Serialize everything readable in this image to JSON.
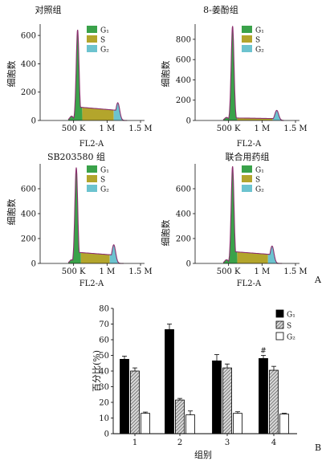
{
  "panel_label_a": "A",
  "panel_label_b": "B",
  "chart_data": [
    {
      "type": "area",
      "title": "对照组",
      "xlabel": "FL2-A",
      "ylabel": "细胞数",
      "xtick_labels": [
        "500 K",
        "1 M",
        "1.5 M"
      ],
      "xticks": [
        500,
        1000,
        1500
      ],
      "xlim": [
        0,
        1560
      ],
      "ylim": [
        0,
        680
      ],
      "yticks": [
        0,
        200,
        400,
        600
      ],
      "legend": [
        "G₁",
        "S",
        "G₂"
      ],
      "g1_peak": {
        "x": 560,
        "y": 640,
        "width": 30
      },
      "s_level": 95,
      "g2_peak": {
        "x": 1160,
        "y": 125,
        "width": 40
      },
      "x_end": 1300,
      "colors": {
        "G1": "#3aa24a",
        "S": "#b3a52c",
        "G2": "#6cc3cf",
        "line": "#8b2f6e"
      }
    },
    {
      "type": "area",
      "title": "8-姜酚组",
      "xlabel": "FL2-A",
      "ylabel": "细胞数",
      "xtick_labels": [
        "500 K",
        "1 M",
        "1.5 M"
      ],
      "xticks": [
        500,
        1000,
        1500
      ],
      "xlim": [
        0,
        1560
      ],
      "ylim": [
        0,
        950
      ],
      "yticks": [
        0,
        200,
        400,
        600,
        800
      ],
      "legend": [
        "G₁",
        "S",
        "G₂"
      ],
      "g1_peak": {
        "x": 560,
        "y": 930,
        "width": 30
      },
      "s_level": 25,
      "g2_peak": {
        "x": 1220,
        "y": 100,
        "width": 40
      },
      "x_end": 1330,
      "colors": {
        "G1": "#3aa24a",
        "S": "#b3a52c",
        "G2": "#6cc3cf",
        "line": "#8b2f6e"
      }
    },
    {
      "type": "area",
      "title": "SB203580 组",
      "xlabel": "FL2-A",
      "ylabel": "细胞数",
      "xtick_labels": [
        "500 K",
        "1 M",
        "1.5 M"
      ],
      "xticks": [
        500,
        1000,
        1500
      ],
      "xlim": [
        0,
        1560
      ],
      "ylim": [
        0,
        800
      ],
      "yticks": [
        0,
        200,
        400,
        600
      ],
      "legend": [
        "G₁",
        "S",
        "G₂"
      ],
      "g1_peak": {
        "x": 540,
        "y": 770,
        "width": 30
      },
      "s_level": 90,
      "g2_peak": {
        "x": 1100,
        "y": 150,
        "width": 40
      },
      "x_end": 1250,
      "colors": {
        "G1": "#3aa24a",
        "S": "#b3a52c",
        "G2": "#6cc3cf",
        "line": "#8b2f6e"
      }
    },
    {
      "type": "area",
      "title": "联合用药组",
      "xlabel": "FL2-A",
      "ylabel": "细胞数",
      "xtick_labels": [
        "500 K",
        "1 M",
        "1.5 M"
      ],
      "xticks": [
        500,
        1000,
        1500
      ],
      "xlim": [
        0,
        1560
      ],
      "ylim": [
        0,
        800
      ],
      "yticks": [
        0,
        200,
        400,
        600
      ],
      "legend": [
        "G₁",
        "S",
        "G₂"
      ],
      "g1_peak": {
        "x": 560,
        "y": 780,
        "width": 30
      },
      "s_level": 95,
      "g2_peak": {
        "x": 1150,
        "y": 140,
        "width": 40
      },
      "x_end": 1300,
      "colors": {
        "G1": "#3aa24a",
        "S": "#b3a52c",
        "G2": "#6cc3cf",
        "line": "#8b2f6e"
      }
    },
    {
      "type": "bar",
      "title": "",
      "xlabel": "组别",
      "ylabel": "百分比(%)",
      "categories": [
        "1",
        "2",
        "3",
        "4"
      ],
      "ylim": [
        0,
        80
      ],
      "yticks": [
        0,
        10,
        20,
        30,
        40,
        50,
        60,
        70,
        80
      ],
      "series": [
        {
          "name": "G₁",
          "values": [
            47.5,
            66.5,
            46.5,
            48
          ],
          "errors": [
            2,
            3.5,
            4,
            2
          ],
          "style": "solid",
          "color": "#000000"
        },
        {
          "name": "S",
          "values": [
            40,
            21.5,
            42,
            40.5
          ],
          "errors": [
            2,
            1,
            2.5,
            2.5
          ],
          "style": "hatch",
          "color": "#555555"
        },
        {
          "name": "G₂",
          "values": [
            13,
            12,
            13,
            12.5
          ],
          "errors": [
            0.8,
            2.5,
            1,
            0.5
          ],
          "style": "open",
          "color": "#ffffff"
        }
      ],
      "annotations": [
        {
          "category": "4",
          "series": "G₁",
          "text": "#"
        }
      ],
      "legend_position": "top-right"
    }
  ]
}
